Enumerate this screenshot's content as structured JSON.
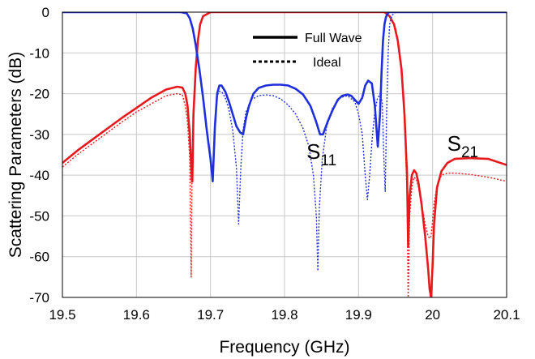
{
  "chart_data": {
    "type": "line",
    "xlabel": "Frequency (GHz)",
    "ylabel": "Scattering Parameters (dB)",
    "xlim": [
      19.5,
      20.1
    ],
    "ylim": [
      -70,
      0
    ],
    "xticks": [
      "19.5",
      "19.6",
      "19.7",
      "19.8",
      "19.9",
      "20",
      "20.1"
    ],
    "yticks": [
      "0",
      "-10",
      "-20",
      "-30",
      "-40",
      "-50",
      "-60",
      "-70"
    ],
    "grid": true,
    "legend": {
      "placement": "top-center",
      "entries": [
        {
          "label": "Full Wave",
          "style": "solid"
        },
        {
          "label": "Ideal",
          "style": "dotted"
        }
      ]
    },
    "annotations": [
      {
        "base": "S",
        "sub": "11",
        "x": 19.845,
        "y": -36
      },
      {
        "base": "S",
        "sub": "21",
        "x": 20.035,
        "y": -34
      }
    ],
    "colors": {
      "s21": "#e8191d",
      "s11": "#1f2fdb"
    },
    "series": [
      {
        "curve": "S21",
        "style": "solid",
        "color": "#e8191d",
        "x": [
          19.5,
          19.52,
          19.55,
          19.58,
          19.6,
          19.62,
          19.64,
          19.655,
          19.662,
          19.666,
          19.669,
          19.672,
          19.675,
          19.6755,
          19.677,
          19.68,
          19.683,
          19.686,
          19.69,
          19.7,
          19.75,
          19.8,
          19.85,
          19.9,
          19.935,
          19.942,
          19.948,
          19.953,
          19.958,
          19.962,
          19.9655,
          19.967,
          19.969,
          19.972,
          19.975,
          19.978,
          19.981,
          19.985,
          19.99,
          19.994,
          19.996,
          19.998,
          20.0,
          20.002,
          20.006,
          20.012,
          20.02,
          20.03,
          20.05,
          20.075,
          20.1
        ],
        "y": [
          -37,
          -34,
          -30,
          -26,
          -23.5,
          -21,
          -19,
          -18.3,
          -18.5,
          -20,
          -23,
          -30,
          -41.5,
          -41.5,
          -25,
          -14,
          -7,
          -3,
          -1,
          0,
          0,
          0,
          0,
          0,
          0,
          -1,
          -3,
          -7,
          -14,
          -25,
          -40,
          -57.5,
          -45,
          -40,
          -38.8,
          -39.5,
          -42,
          -47,
          -55,
          -63,
          -68,
          -70,
          -62,
          -52,
          -43,
          -39,
          -37,
          -36,
          -35.8,
          -36,
          -37.5
        ]
      },
      {
        "curve": "S21",
        "style": "dotted",
        "color": "#e8191d",
        "x": [
          19.5,
          19.52,
          19.55,
          19.58,
          19.6,
          19.62,
          19.64,
          19.655,
          19.662,
          19.666,
          19.669,
          19.672,
          19.674,
          19.675,
          19.677,
          19.68,
          19.683,
          19.686,
          19.69,
          19.7,
          19.75,
          19.8,
          19.85,
          19.9,
          19.935,
          19.942,
          19.948,
          19.953,
          19.958,
          19.962,
          19.9655,
          19.967,
          19.969,
          19.972,
          19.975,
          19.978,
          19.981,
          19.985,
          19.99,
          19.994,
          19.996,
          19.998,
          20.0,
          20.002,
          20.006,
          20.012,
          20.02,
          20.03,
          20.05,
          20.075,
          20.1
        ],
        "y": [
          -38,
          -35,
          -31,
          -27,
          -24.5,
          -22.5,
          -20.5,
          -20,
          -20.3,
          -23,
          -27,
          -36,
          -65,
          -40,
          -25,
          -14,
          -7,
          -3,
          -1,
          0,
          0,
          0,
          0,
          0,
          0,
          -1,
          -3,
          -7,
          -14,
          -25,
          -45,
          -70,
          -50,
          -43,
          -40.5,
          -41,
          -43,
          -47,
          -52,
          -55,
          -55.5,
          -55,
          -51,
          -47,
          -42.5,
          -40,
          -39.5,
          -39.5,
          -39.8,
          -40.5,
          -41.5
        ]
      },
      {
        "curve": "S11",
        "style": "solid",
        "color": "#1f2fdb",
        "x": [
          19.5,
          19.66,
          19.668,
          19.672,
          19.676,
          19.68,
          19.685,
          19.69,
          19.695,
          19.7,
          19.703,
          19.706,
          19.709,
          19.712,
          19.715,
          19.72,
          19.725,
          19.73,
          19.735,
          19.74,
          19.744,
          19.748,
          19.752,
          19.758,
          19.765,
          19.775,
          19.785,
          19.795,
          19.805,
          19.815,
          19.825,
          19.835,
          19.842,
          19.848,
          19.852,
          19.858,
          19.865,
          19.872,
          19.878,
          19.885,
          19.89,
          19.895,
          19.9,
          19.905,
          19.909,
          19.913,
          19.918,
          19.922,
          19.926,
          19.929,
          19.931,
          19.933,
          19.935,
          19.937,
          19.939,
          19.941,
          19.943,
          19.946,
          19.95,
          19.96,
          19.97,
          20.1
        ],
        "y": [
          0,
          0,
          -0.3,
          -1.5,
          -4,
          -8,
          -14,
          -21,
          -29,
          -36,
          -41.5,
          -28,
          -20,
          -18,
          -18,
          -19.5,
          -22,
          -25,
          -28,
          -29.5,
          -30,
          -26,
          -23,
          -20,
          -18.6,
          -18,
          -17.8,
          -17.8,
          -18,
          -18.8,
          -20.2,
          -23,
          -26.5,
          -30,
          -30,
          -27,
          -24,
          -21.5,
          -20.5,
          -20.2,
          -20.5,
          -21.5,
          -22.5,
          -21,
          -18,
          -16.8,
          -17.5,
          -23,
          -33,
          -25,
          -15,
          -7,
          -3,
          -1.2,
          -0.4,
          0,
          0,
          0,
          0,
          0,
          0,
          0
        ]
      },
      {
        "curve": "S11",
        "style": "dotted",
        "color": "#1f2fdb",
        "x": [
          19.5,
          19.66,
          19.668,
          19.672,
          19.676,
          19.68,
          19.685,
          19.69,
          19.695,
          19.7,
          19.703,
          19.706,
          19.709,
          19.712,
          19.715,
          19.72,
          19.725,
          19.73,
          19.735,
          19.738,
          19.741,
          19.744,
          19.748,
          19.755,
          19.765,
          19.775,
          19.785,
          19.795,
          19.805,
          19.815,
          19.825,
          19.833,
          19.839,
          19.843,
          19.845,
          19.847,
          19.851,
          19.857,
          19.865,
          19.875,
          19.885,
          19.895,
          19.9,
          19.905,
          19.909,
          19.912,
          19.915,
          19.918,
          19.921,
          19.925,
          19.929,
          19.932,
          19.934,
          19.936,
          19.938,
          19.94,
          19.942,
          19.945,
          19.95,
          19.96,
          19.97,
          20.1
        ],
        "y": [
          0,
          0,
          -0.3,
          -1.5,
          -4,
          -8,
          -14,
          -21,
          -29,
          -36,
          -40,
          -27,
          -20.5,
          -19.5,
          -19.5,
          -21,
          -24,
          -29,
          -38,
          -52,
          -38,
          -29,
          -24.5,
          -21.5,
          -20.5,
          -20.3,
          -20.5,
          -21.3,
          -22.8,
          -25,
          -28.5,
          -33,
          -40,
          -50,
          -63.5,
          -48,
          -36,
          -28,
          -23.5,
          -21,
          -20.5,
          -22,
          -25,
          -30,
          -40,
          -46,
          -40,
          -32,
          -26,
          -21.5,
          -20,
          -22,
          -35,
          -44,
          -24,
          -10,
          -3,
          -0.8,
          0,
          0,
          0,
          0
        ]
      }
    ]
  }
}
